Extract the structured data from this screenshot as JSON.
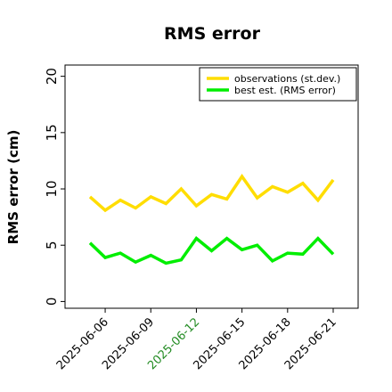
{
  "chart_data": {
    "type": "line",
    "title": "RMS error",
    "ylabel": "RMS error (cm)",
    "xlabel": "",
    "ylim": [
      -0.6,
      21.0
    ],
    "yticks": [
      0,
      5,
      10,
      15,
      20
    ],
    "xticks": [
      "2025-06-06",
      "2025-06-09",
      "2025-06-12",
      "2025-06-15",
      "2025-06-18",
      "2025-06-21"
    ],
    "highlight_tick": "2025-06-12",
    "highlight_color": "#228b22",
    "legend_position": "top-right",
    "grid": false,
    "x": [
      "2025-06-05",
      "2025-06-06",
      "2025-06-07",
      "2025-06-08",
      "2025-06-09",
      "2025-06-10",
      "2025-06-11",
      "2025-06-12",
      "2025-06-13",
      "2025-06-14",
      "2025-06-15",
      "2025-06-16",
      "2025-06-17",
      "2025-06-18",
      "2025-06-19",
      "2025-06-20",
      "2025-06-21"
    ],
    "series": [
      {
        "name": "observations (st.dev.)",
        "color": "#ffdd00",
        "values": [
          9.3,
          8.1,
          9.0,
          8.3,
          9.3,
          8.7,
          10.0,
          8.5,
          9.5,
          9.1,
          11.1,
          9.2,
          10.2,
          9.7,
          10.5,
          9.0,
          10.8
        ]
      },
      {
        "name": "best est. (RMS error)",
        "color": "#00ee00",
        "values": [
          5.2,
          3.9,
          4.3,
          3.5,
          4.1,
          3.4,
          3.7,
          5.6,
          4.5,
          5.6,
          4.6,
          5.0,
          3.6,
          4.3,
          4.2,
          5.6,
          4.2
        ]
      }
    ]
  }
}
